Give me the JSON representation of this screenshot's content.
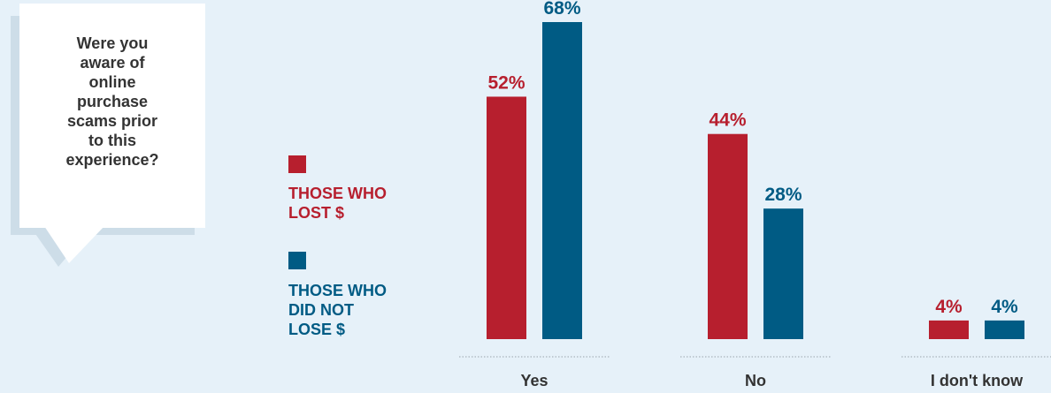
{
  "question": "Were you\naware of\nonline\npurchase\nscams prior\nto this\nexperience?",
  "legend": [
    {
      "label": "THOSE WHO\nLOST $",
      "color": "#b71f2e"
    },
    {
      "label": "THOSE WHO\nDID NOT\nLOSE $",
      "color": "#005b84"
    }
  ],
  "chart_data": {
    "type": "bar",
    "categories": [
      "Yes",
      "No",
      "I don't know"
    ],
    "series": [
      {
        "name": "THOSE WHO LOST $",
        "values": [
          52,
          44,
          4
        ],
        "labels": [
          "52%",
          "44%",
          "4%"
        ],
        "color": "#b71f2e"
      },
      {
        "name": "THOSE WHO DID NOT LOSE $",
        "values": [
          68,
          28,
          4
        ],
        "labels": [
          "68%",
          "28%",
          "4%"
        ],
        "color": "#005b84"
      }
    ],
    "ylim": [
      0,
      68
    ],
    "grid": false,
    "legend_position": "left"
  }
}
